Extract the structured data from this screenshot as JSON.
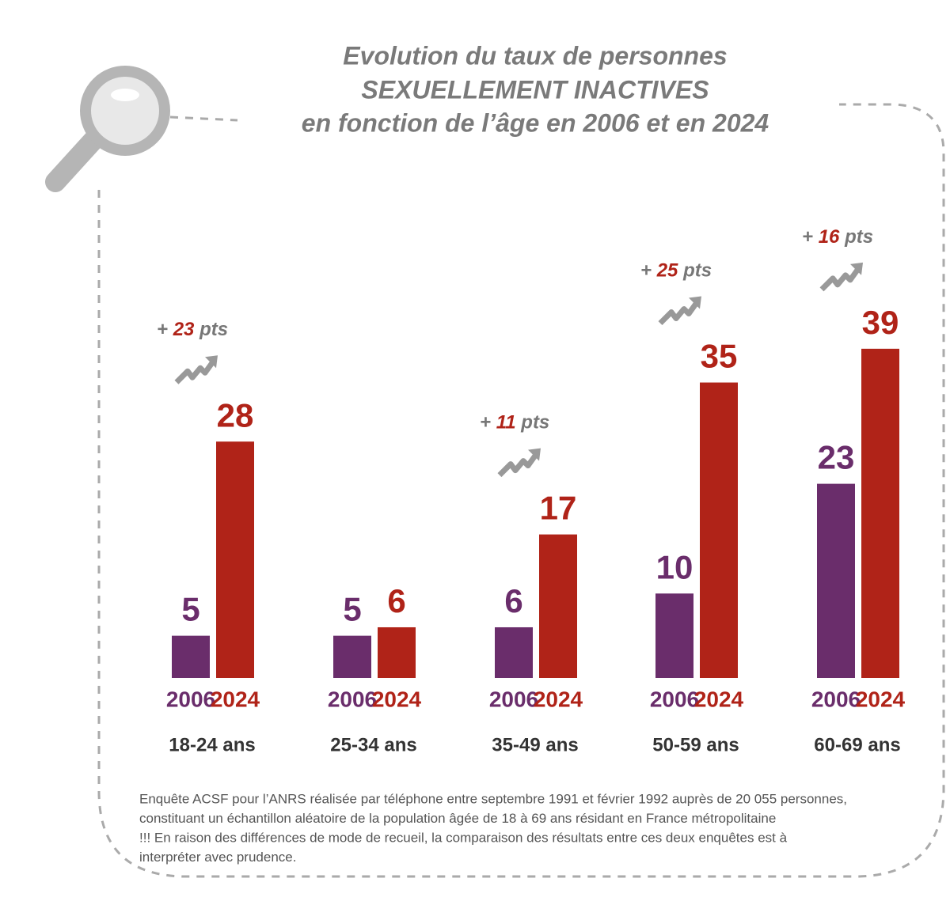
{
  "chart_data": {
    "type": "bar",
    "title": [
      "Evolution du taux de personnes",
      "SEXUELLEMENT INACTIVES",
      "en fonction de l’âge en 2006 et en 2024"
    ],
    "categories": [
      "18-24 ans",
      "25-34 ans",
      "35-49 ans",
      "50-59 ans",
      "60-69 ans"
    ],
    "series": [
      {
        "name": "2006",
        "color": "#6a2d6b",
        "values": [
          5,
          5,
          6,
          10,
          23
        ]
      },
      {
        "name": "2024",
        "color": "#b02318",
        "values": [
          28,
          6,
          17,
          35,
          39
        ]
      }
    ],
    "changes": {
      "prefix": "+",
      "suffix": "pts",
      "values": [
        23,
        null,
        11,
        25,
        16
      ]
    },
    "footnote": [
      "Enquête ACSF pour l’ANRS réalisée par téléphone entre septembre 1991 et février 1992 auprès de 20 055 personnes,",
      "constituant un échantillon aléatoire de la population âgée de 18 à 69 ans résidant en France métropolitaine",
      "!!! En raison des différences de mode de recueil, la comparaison des résultats entre ces deux enquêtes est à",
      "interpréter avec prudence."
    ]
  }
}
